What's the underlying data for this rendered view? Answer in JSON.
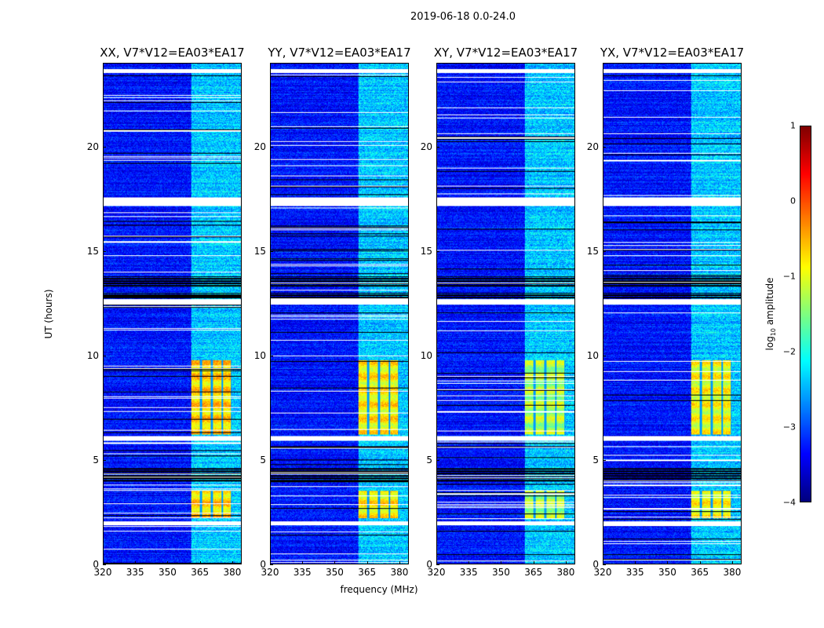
{
  "chart_data": {
    "type": "heatmap",
    "title": "2019-06-18 0.0-24.0",
    "xlabel": "frequency (MHz)",
    "ylabel": "UT (hours)",
    "xlim": [
      320,
      384.4
    ],
    "ylim": [
      0,
      24
    ],
    "xticks": [
      "320",
      "335",
      "350",
      "365",
      "380"
    ],
    "xtick_values": [
      320,
      335,
      350,
      365,
      380
    ],
    "yticks": [
      "0",
      "5",
      "10",
      "15",
      "20"
    ],
    "ytick_values": [
      0,
      5,
      10,
      15,
      20
    ],
    "panels": [
      {
        "title": "XX, V7*V12=EA03*EA17",
        "strong_level": -0.2,
        "seed": 11
      },
      {
        "title": "YY, V7*V12=EA03*EA17",
        "strong_level": -0.35,
        "seed": 23
      },
      {
        "title": "XY, V7*V12=EA03*EA17",
        "strong_level": -0.8,
        "seed": 37
      },
      {
        "title": "YX, V7*V12=EA03*EA17",
        "strong_level": -0.45,
        "seed": 51
      }
    ],
    "background_level": -3.3,
    "rfi_band_mhz": [
      361,
      384.4
    ],
    "rfi_band_level": -2.4,
    "strong_regions_hours": [
      [
        6.2,
        9.8
      ],
      [
        2.2,
        3.5
      ]
    ],
    "strong_freq_mhz": [
      361,
      380
    ],
    "subband_edges_mhz": [
      365.5,
      370.5,
      375.5,
      380
    ],
    "flagged_white_hours": [
      [
        1.85,
        2.05
      ],
      [
        5.9,
        6.15
      ],
      [
        12.45,
        12.7
      ],
      [
        17.2,
        17.6
      ],
      [
        23.55,
        23.75
      ]
    ],
    "flagged_black_hours": [
      [
        12.75,
        13.0
      ],
      [
        13.3,
        13.8
      ],
      [
        3.95,
        4.6
      ]
    ],
    "colorbar": {
      "label": "log10 amplitude",
      "label_main": "log",
      "label_sub": "10",
      "label_rest": " amplitude",
      "range": [
        -4,
        1
      ],
      "ticks": [
        "1",
        "0",
        "−1",
        "−2",
        "−3",
        "−4"
      ],
      "tick_values": [
        1,
        0,
        -1,
        -2,
        -3,
        -4
      ],
      "colormap": "jet"
    }
  }
}
